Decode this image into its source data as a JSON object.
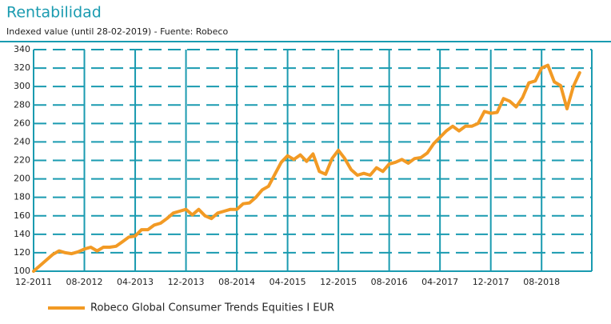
{
  "chart_data": {
    "type": "line",
    "title": "Rentabilidad",
    "subtitle": "Indexed value (until 28-02-2019) - Fuente: Robeco",
    "categories": [
      "12-2011",
      null,
      null,
      null,
      null,
      null,
      null,
      null,
      "08-2012",
      null,
      null,
      null,
      null,
      null,
      null,
      null,
      "04-2013",
      null,
      null,
      null,
      null,
      null,
      null,
      null,
      "12-2013",
      null,
      null,
      null,
      null,
      null,
      null,
      null,
      "08-2014",
      null,
      null,
      null,
      null,
      null,
      null,
      null,
      "04-2015",
      null,
      null,
      null,
      null,
      null,
      null,
      null,
      "12-2015",
      null,
      null,
      null,
      null,
      null,
      null,
      null,
      "08-2016",
      null,
      null,
      null,
      null,
      null,
      null,
      null,
      "04-2017",
      null,
      null,
      null,
      null,
      null,
      null,
      null,
      "12-2017",
      null,
      null,
      null,
      null,
      null,
      null,
      null,
      "08-2018",
      null,
      null,
      null,
      null,
      null,
      null
    ],
    "series": [
      {
        "name": "Robeco Global Consumer Trends Equities I EUR",
        "color": "#f29a24",
        "values": [
          100,
          106,
          112,
          118,
          122,
          120,
          119,
          121,
          124,
          126,
          122,
          126,
          126,
          127,
          132,
          137,
          138,
          145,
          145,
          150,
          152,
          157,
          163,
          165,
          167,
          161,
          167,
          160,
          157,
          163,
          165,
          167,
          167,
          173,
          174,
          180,
          188,
          192,
          205,
          218,
          225,
          221,
          226,
          219,
          227,
          208,
          205,
          222,
          231,
          222,
          210,
          204,
          206,
          204,
          212,
          208,
          216,
          218,
          221,
          217,
          222,
          223,
          228,
          238,
          245,
          252,
          257,
          252,
          257,
          257,
          260,
          273,
          271,
          272,
          287,
          284,
          278,
          288,
          304,
          306,
          320,
          323,
          305,
          301,
          276,
          300,
          315
        ]
      }
    ],
    "ylim": [
      100,
      340
    ],
    "yticks": [
      100,
      120,
      140,
      160,
      180,
      200,
      220,
      240,
      260,
      280,
      300,
      320,
      340
    ],
    "grid": true,
    "grid_color": "#1a9bb0"
  }
}
